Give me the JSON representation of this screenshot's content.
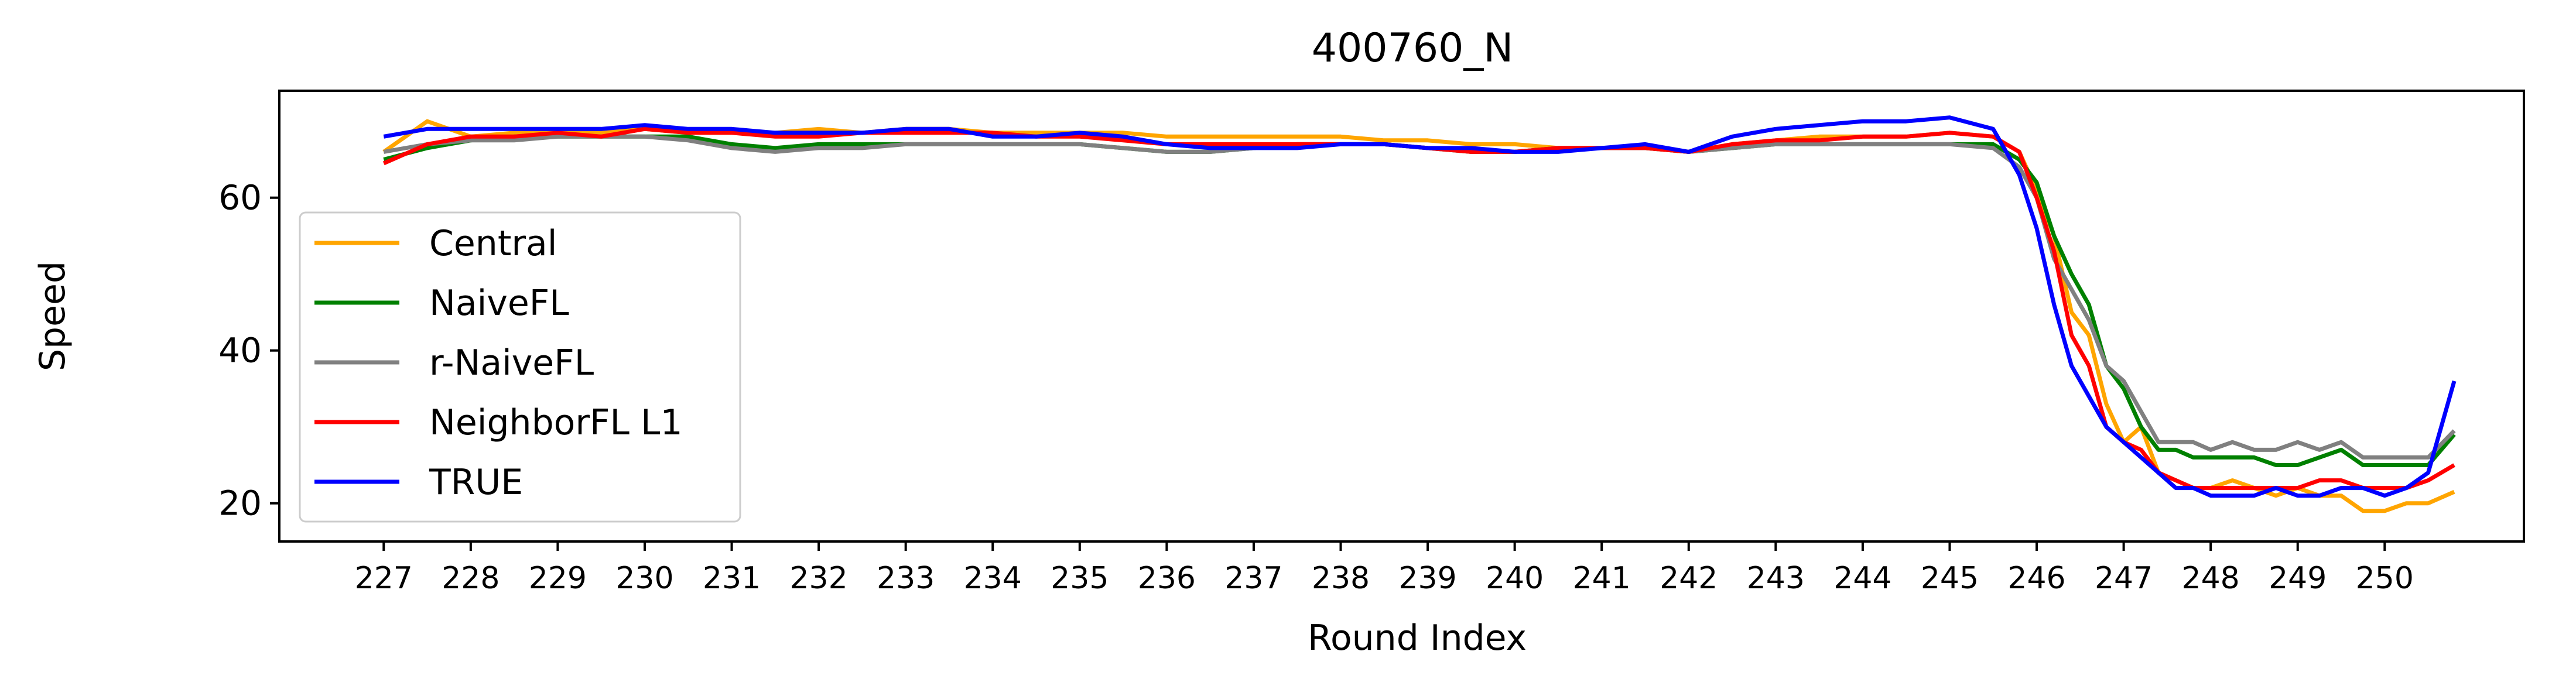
{
  "chart_data": {
    "type": "line",
    "title": "400760_N",
    "xlabel": "Round Index",
    "ylabel": "Speed",
    "x_ticks": [
      "227",
      "228",
      "229",
      "230",
      "231",
      "232",
      "233",
      "234",
      "235",
      "236",
      "237",
      "238",
      "239",
      "240",
      "241",
      "242",
      "243",
      "244",
      "245",
      "246",
      "247",
      "248",
      "249",
      "250"
    ],
    "y_ticks": [
      20,
      40,
      60
    ],
    "xlim": [
      225.8,
      251.6
    ],
    "ylim": [
      15,
      74
    ],
    "grid": false,
    "legend_position": "center-left",
    "x": [
      227,
      227.5,
      228,
      228.5,
      229,
      229.5,
      230,
      230.5,
      231,
      231.5,
      232,
      232.5,
      233,
      233.5,
      234,
      234.5,
      235,
      235.5,
      236,
      236.5,
      237,
      237.5,
      238,
      238.5,
      239,
      239.5,
      240,
      240.5,
      241,
      241.5,
      242,
      242.5,
      243,
      243.5,
      244,
      244.5,
      245,
      245.5,
      245.8,
      246,
      246.2,
      246.4,
      246.6,
      246.8,
      247,
      247.2,
      247.4,
      247.6,
      247.8,
      248,
      248.25,
      248.5,
      248.75,
      249,
      249.25,
      249.5,
      249.75,
      250,
      250.25,
      250.5,
      250.8
    ],
    "series": [
      {
        "name": "Central",
        "color": "#ffa500",
        "values": [
          66,
          70,
          68,
          68.5,
          68.5,
          68.5,
          69,
          68.5,
          68.5,
          68.5,
          69,
          68.5,
          69,
          69,
          68.5,
          68.5,
          68.5,
          68.5,
          68,
          68,
          68,
          68,
          68,
          67.5,
          67.5,
          67,
          67,
          66.5,
          66.5,
          66.5,
          66,
          67,
          67.5,
          68,
          68,
          68,
          68.5,
          68,
          66,
          61,
          55,
          45,
          42,
          33,
          28,
          30,
          24,
          23,
          22,
          22,
          23,
          22,
          21,
          22,
          21,
          21,
          19,
          19,
          20,
          20,
          21.5
        ]
      },
      {
        "name": "NaiveFL",
        "color": "#008000",
        "values": [
          65,
          66.5,
          67.5,
          68,
          68,
          68,
          68,
          68,
          67,
          66.5,
          67,
          67,
          67,
          67,
          67,
          67,
          67,
          66.5,
          66,
          66,
          66.5,
          67,
          67,
          67,
          66.5,
          66,
          66,
          66.5,
          66.5,
          66.5,
          66,
          66.5,
          67,
          67,
          67,
          67,
          67,
          67,
          65,
          62,
          55,
          50,
          46,
          38,
          35,
          30,
          27,
          27,
          26,
          26,
          26,
          26,
          25,
          25,
          26,
          27,
          25,
          25,
          25,
          25,
          29
        ]
      },
      {
        "name": "r-NaiveFL",
        "color": "#808080",
        "values": [
          66,
          67,
          67.5,
          67.5,
          68,
          68,
          68,
          67.5,
          66.5,
          66,
          66.5,
          66.5,
          67,
          67,
          67,
          67,
          67,
          66.5,
          66,
          66,
          66.5,
          67,
          67,
          67,
          66.5,
          66,
          66,
          66.5,
          66.5,
          66.5,
          66,
          66.5,
          67,
          67,
          67,
          67,
          67,
          66.5,
          64,
          60,
          52,
          48,
          44,
          38,
          36,
          32,
          28,
          28,
          28,
          27,
          28,
          27,
          27,
          28,
          27,
          28,
          26,
          26,
          26,
          26,
          29.5
        ]
      },
      {
        "name": "NeighborFL L1",
        "color": "#ff0000",
        "values": [
          64.5,
          67,
          68,
          68,
          68.5,
          68,
          69,
          68.5,
          68.5,
          68,
          68,
          68.5,
          68.5,
          68.5,
          68.5,
          68,
          68,
          67.5,
          67,
          67,
          67,
          67,
          67,
          67,
          66.5,
          66,
          66,
          66.5,
          66.5,
          66.5,
          66,
          67,
          67.5,
          67.5,
          68,
          68,
          68.5,
          68,
          66,
          60,
          53,
          42,
          38,
          30,
          28,
          27,
          24,
          23,
          22,
          22,
          22,
          22,
          22,
          22,
          23,
          23,
          22,
          22,
          22,
          23,
          25
        ]
      },
      {
        "name": "TRUE",
        "color": "#0000ff",
        "values": [
          68,
          69,
          69,
          69,
          69,
          69,
          69.5,
          69,
          69,
          68.5,
          68.5,
          68.5,
          69,
          69,
          68,
          68,
          68.5,
          68,
          67,
          66.5,
          66.5,
          66.5,
          67,
          67,
          66.5,
          66.5,
          66,
          66,
          66.5,
          67,
          66,
          68,
          69,
          69.5,
          70,
          70,
          70.5,
          69,
          63,
          56,
          46,
          38,
          34,
          30,
          28,
          26,
          24,
          22,
          22,
          21,
          21,
          21,
          22,
          21,
          21,
          22,
          22,
          21,
          22,
          24,
          36
        ]
      }
    ]
  }
}
